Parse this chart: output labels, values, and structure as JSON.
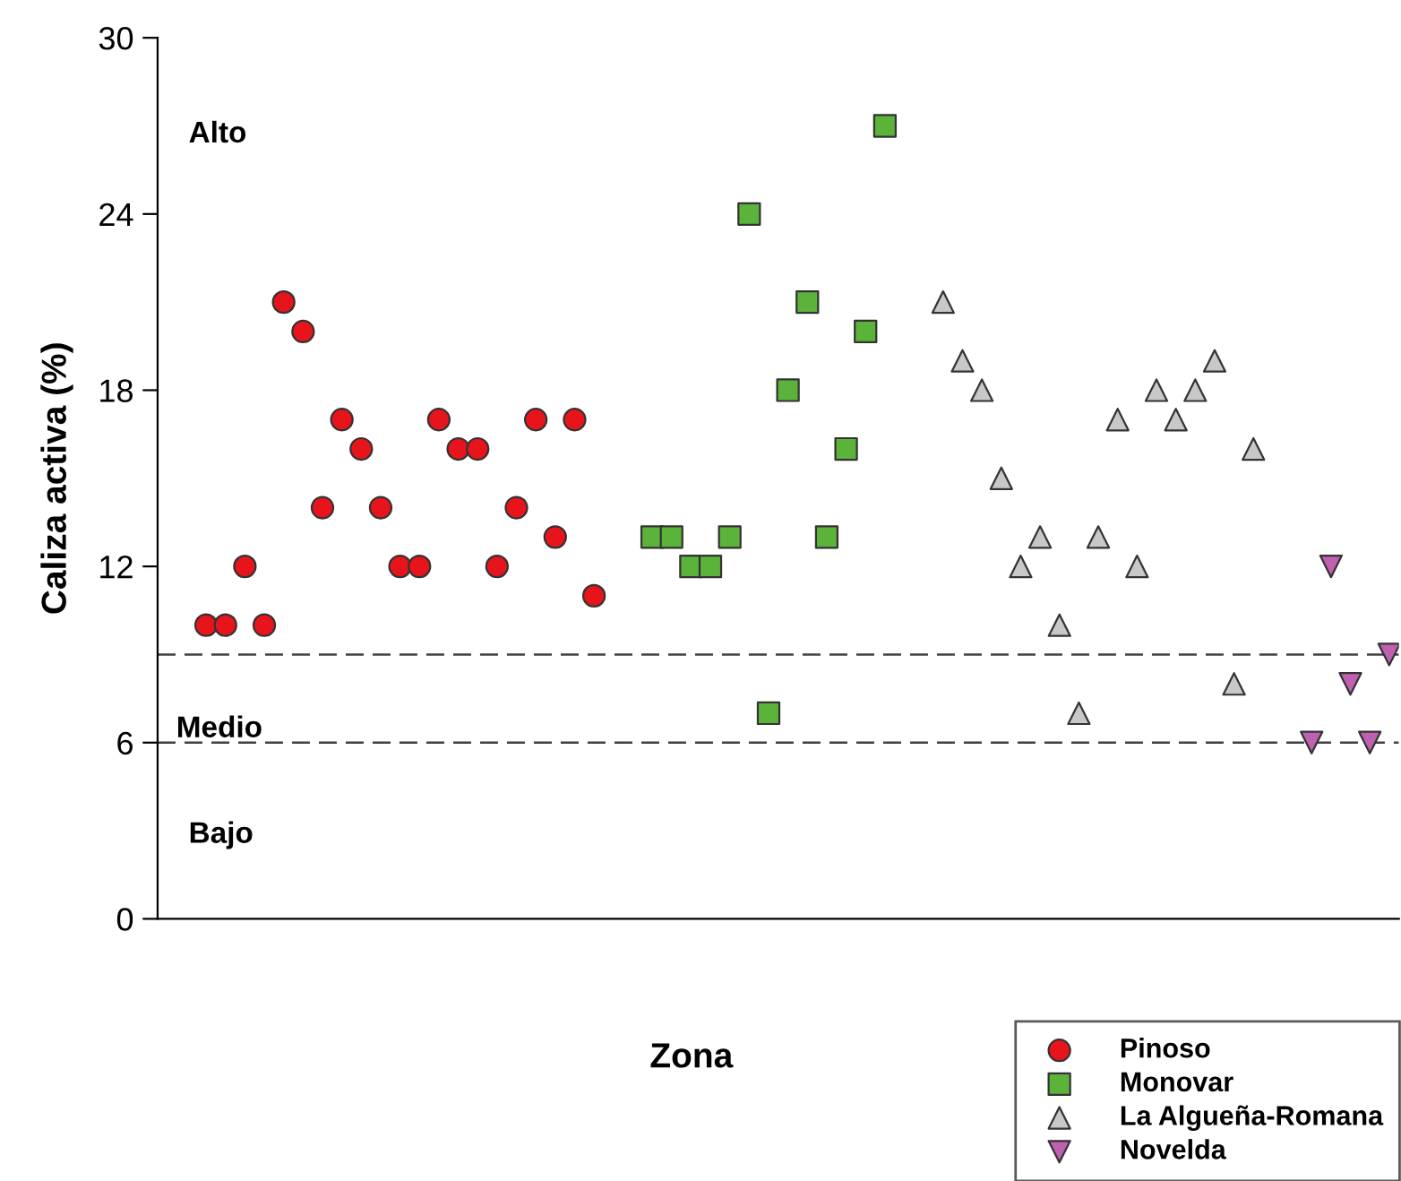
{
  "chart_data": {
    "type": "scatter",
    "xlabel": "Zona",
    "ylabel": "Caliza activa (%)",
    "categories": [
      null,
      null,
      null,
      null,
      null,
      null,
      null,
      null,
      null,
      null,
      null,
      null,
      null,
      null,
      null,
      null,
      null,
      null,
      null,
      null,
      null,
      null,
      null,
      null,
      null,
      null,
      null,
      null,
      null,
      null,
      null,
      null,
      null,
      null,
      null,
      null,
      null,
      null,
      null,
      null,
      null,
      null,
      null,
      null,
      null,
      null,
      null,
      null,
      null,
      null,
      null,
      null,
      null,
      null,
      null,
      null,
      null,
      null,
      null,
      null,
      null,
      null,
      null,
      null
    ],
    "series": [
      {
        "name": "Pinoso",
        "color": "#e8141c",
        "marker": "circle",
        "values": [
          null,
          null,
          10,
          10,
          12,
          10,
          21,
          20,
          14,
          17,
          16,
          14,
          12,
          12,
          17,
          16,
          16,
          12,
          14,
          17,
          13,
          17,
          11,
          null,
          null,
          null,
          null,
          null,
          null,
          null,
          null,
          null,
          null,
          null,
          null,
          null,
          null,
          null,
          null,
          null,
          null,
          null,
          null,
          null,
          null,
          null,
          null,
          null,
          null,
          null,
          null,
          null,
          null,
          null,
          null,
          null,
          null,
          null,
          null,
          null,
          null,
          null,
          null,
          null
        ]
      },
      {
        "name": "Monovar",
        "color": "#5cb33a",
        "marker": "square",
        "values": [
          null,
          null,
          null,
          null,
          null,
          null,
          null,
          null,
          null,
          null,
          null,
          null,
          null,
          null,
          null,
          null,
          null,
          null,
          null,
          null,
          null,
          null,
          null,
          null,
          null,
          13,
          13,
          12,
          12,
          13,
          24,
          7,
          18,
          21,
          13,
          16,
          20,
          27,
          null,
          null,
          null,
          null,
          null,
          null,
          null,
          null,
          null,
          null,
          null,
          null,
          null,
          null,
          null,
          null,
          null,
          null,
          null,
          null,
          null,
          null,
          null,
          null,
          null,
          null
        ]
      },
      {
        "name": "La Algueña-Romana",
        "color": "#c8c8c8",
        "marker": "triangle",
        "values": [
          null,
          null,
          null,
          null,
          null,
          null,
          null,
          null,
          null,
          null,
          null,
          null,
          null,
          null,
          null,
          null,
          null,
          null,
          null,
          null,
          null,
          null,
          null,
          null,
          null,
          null,
          null,
          null,
          null,
          null,
          null,
          null,
          null,
          null,
          null,
          null,
          null,
          null,
          null,
          null,
          21,
          19,
          18,
          15,
          12,
          13,
          10,
          7,
          13,
          17,
          12,
          18,
          17,
          18,
          19,
          8,
          16,
          null,
          null,
          null,
          null,
          null,
          null,
          null
        ]
      },
      {
        "name": "Novelda",
        "color": "#c060b0",
        "values": [
          null,
          null,
          null,
          null,
          null,
          null,
          null,
          null,
          null,
          null,
          null,
          null,
          null,
          null,
          null,
          null,
          null,
          null,
          null,
          null,
          null,
          null,
          null,
          null,
          null,
          null,
          null,
          null,
          null,
          null,
          null,
          null,
          null,
          null,
          null,
          null,
          null,
          null,
          null,
          null,
          null,
          null,
          null,
          null,
          null,
          null,
          null,
          null,
          null,
          null,
          null,
          null,
          null,
          null,
          null,
          null,
          null,
          null,
          null,
          6,
          12,
          8,
          6,
          9
        ]
      }
    ],
    "ylim": [
      0,
      30
    ],
    "yticks": [
      0,
      6,
      12,
      18,
      24,
      30
    ],
    "ref_lines": [
      {
        "axis": "y",
        "value": 9,
        "color": "#404040",
        "line_style": "dashed"
      },
      {
        "axis": "y",
        "value": 6,
        "color": "#404040",
        "line_style": "dashed"
      }
    ],
    "annotations": [
      "Alto",
      "Medio",
      "Bajo"
    ],
    "legend": "bottom right",
    "grid": false
  }
}
